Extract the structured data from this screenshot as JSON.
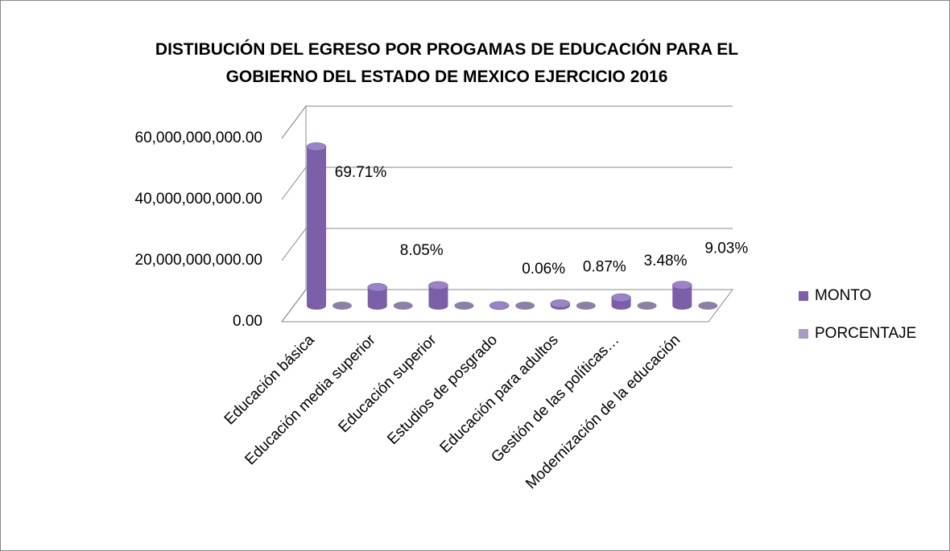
{
  "chart_data": {
    "type": "bar3d",
    "title": "DISTIBUCIÓN DEL EGRESO POR PROGAMAS DE EDUCACIÓN  PARA EL GOBIERNO DEL ESTADO DE  MEXICO EJERCICIO 2016",
    "categories": [
      "Educación básica",
      "Educación media superior",
      "Educación superior",
      "Estudios de posgrado",
      "Educación para adultos",
      "Gestión de las políticas…",
      "Modernización de la educación"
    ],
    "series": [
      {
        "name": "MONTO",
        "color": "#7b5fa8",
        "values": [
          52000000000,
          6000000000,
          6600000000,
          45000000,
          650000000,
          2600000000,
          6700000000
        ]
      },
      {
        "name": "PORCENTAJE",
        "color": "#a99cc4",
        "values": [
          0.6971,
          0.0805,
          0.088,
          0.0006,
          0.0087,
          0.0348,
          0.0903
        ],
        "value_labels": [
          "69.71%",
          "8.05%",
          null,
          "0.06%",
          "0.87%",
          "3.48%",
          "9.03%"
        ]
      }
    ],
    "ylim": [
      0,
      60000000000
    ],
    "yticks": [
      {
        "value": 0,
        "label": "0.00"
      },
      {
        "value": 20000000000,
        "label": "20,000,000,000.00"
      },
      {
        "value": 40000000000,
        "label": "40,000,000,000.00"
      },
      {
        "value": 60000000000,
        "label": "60,000,000,000.00"
      }
    ],
    "grid": true,
    "legend": "right"
  }
}
